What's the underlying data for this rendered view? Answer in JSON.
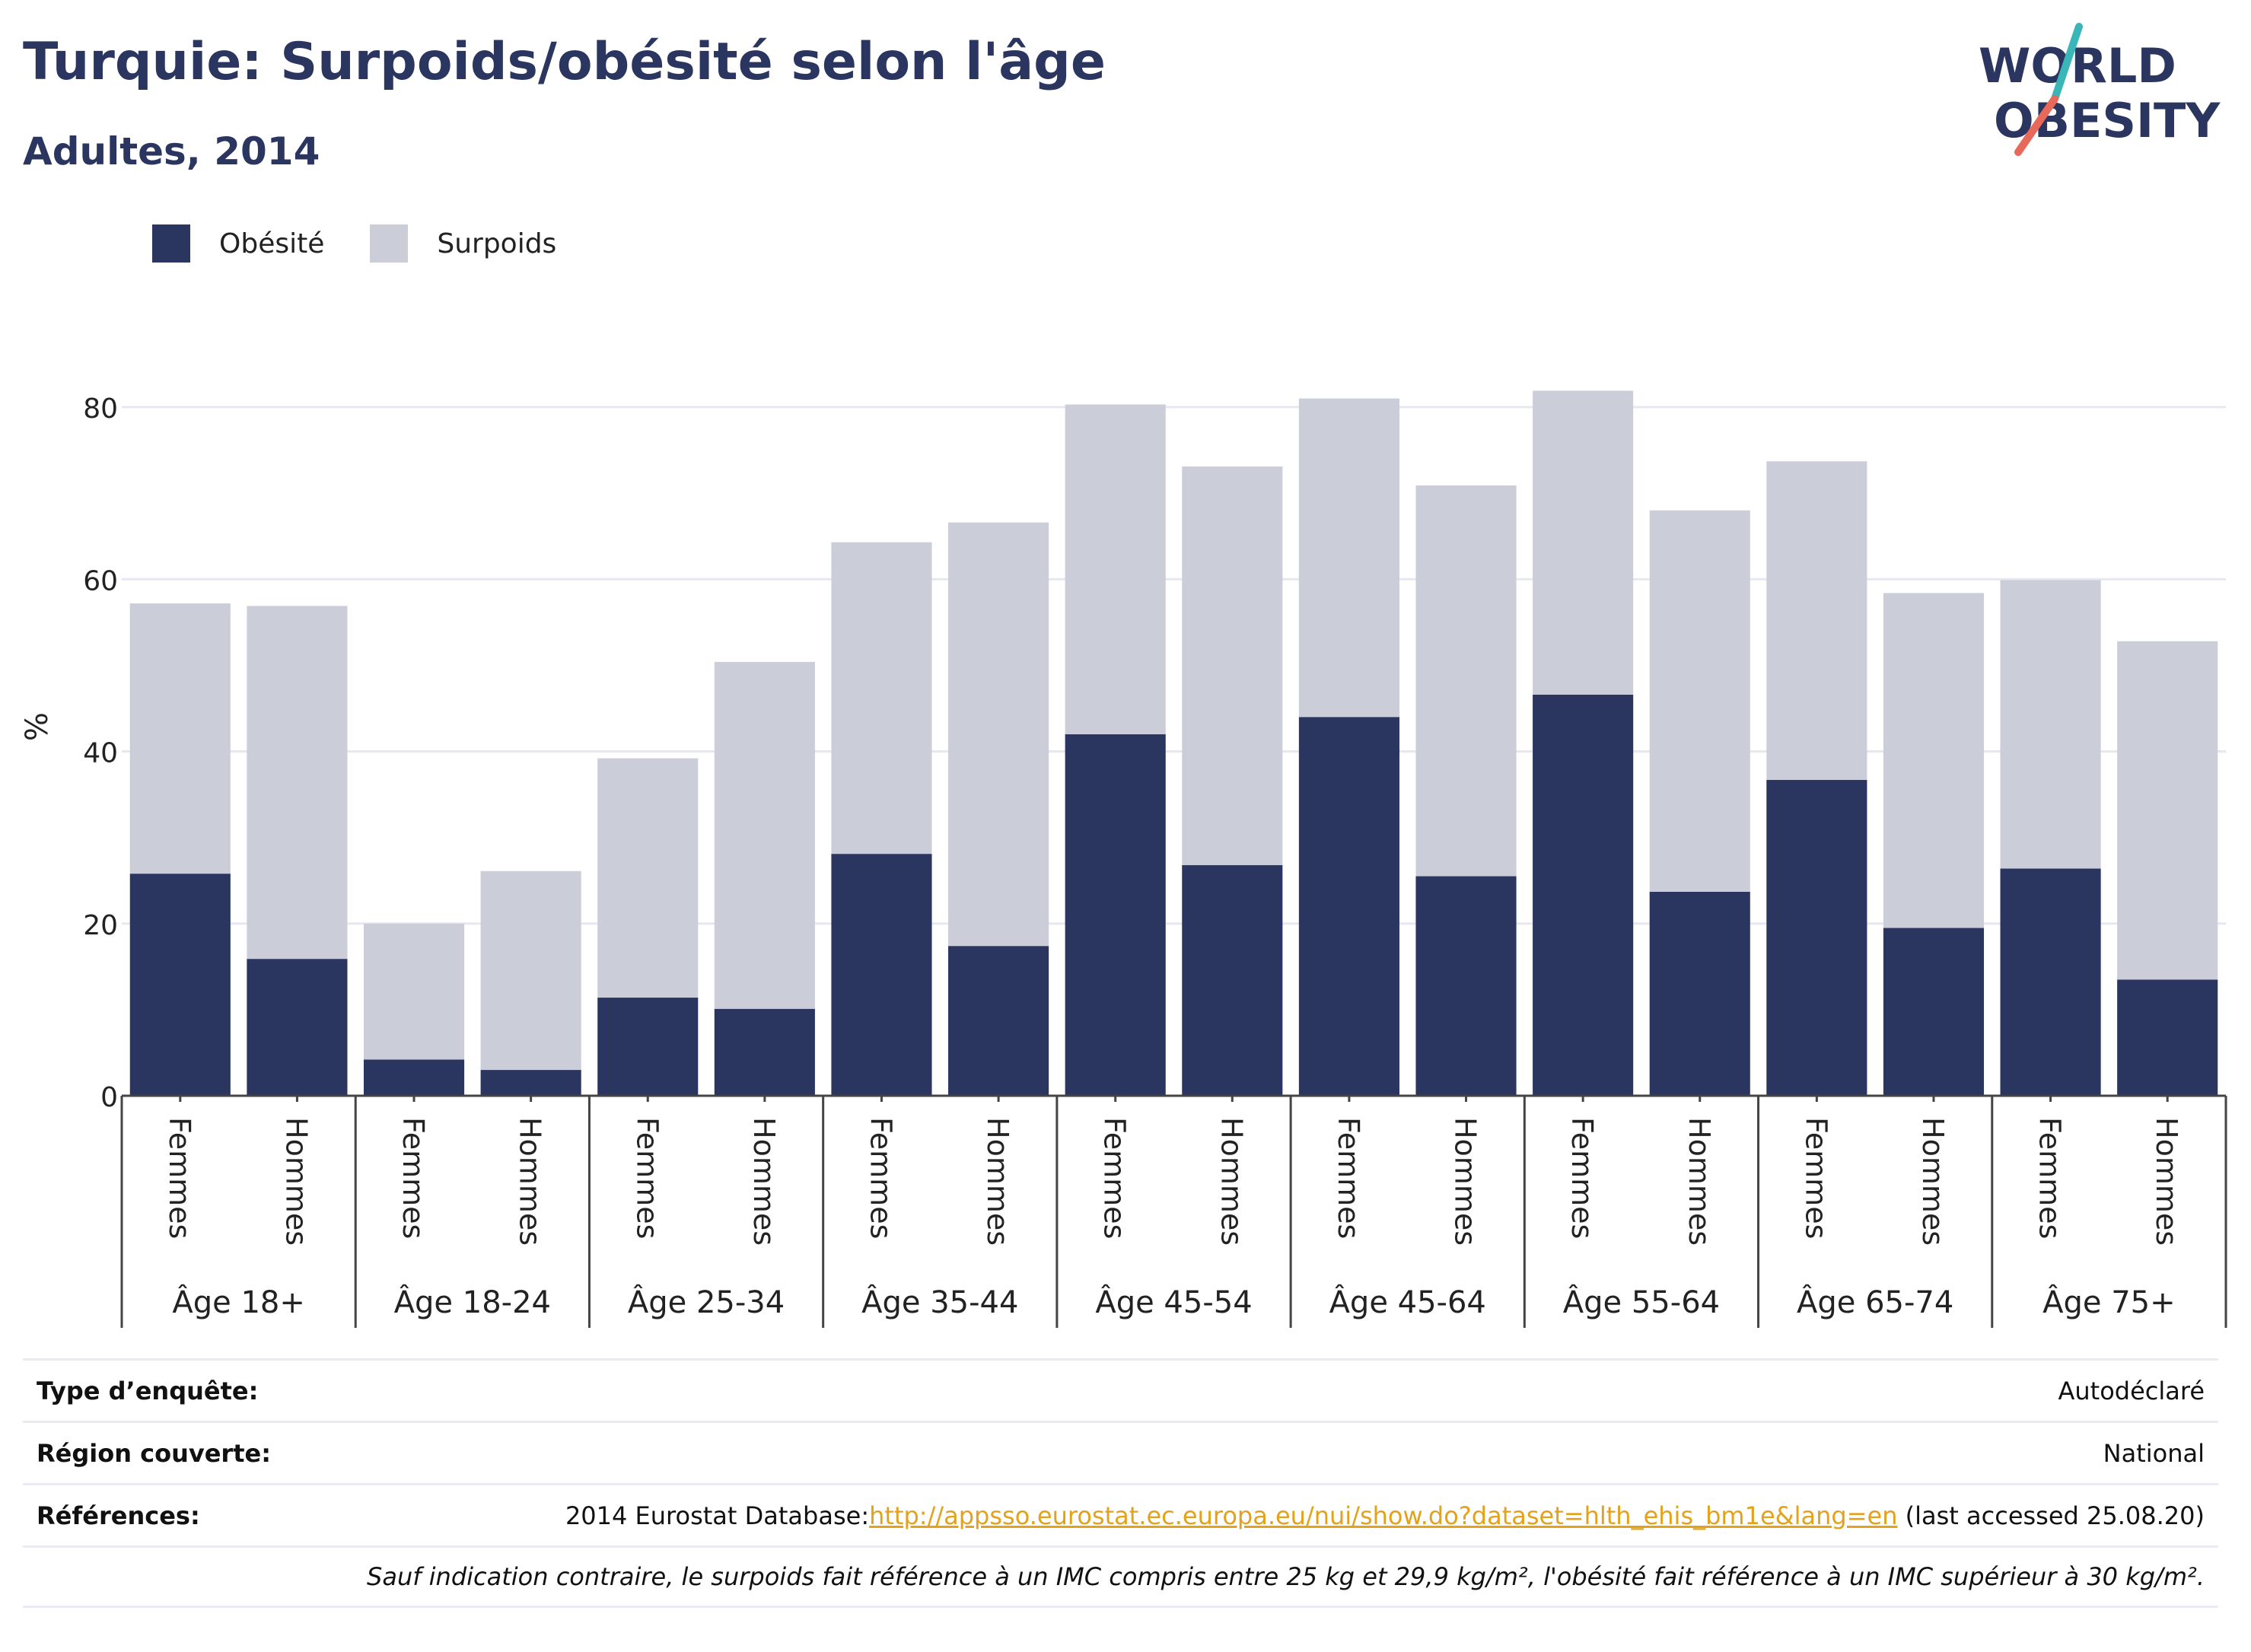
{
  "header": {
    "title": "Turquie: Surpoids/obésité selon l'âge",
    "subtitle": "Adultes, 2014"
  },
  "logo": {
    "line1": "WORLD",
    "line2": "OBESITY"
  },
  "colors": {
    "obesity": "#2a3560",
    "overweight": "#cbcdd9",
    "accent_teal": "#3bb6b8",
    "accent_red": "#e8685a",
    "link": "#e3a21a"
  },
  "chart_data": {
    "type": "bar",
    "stacked": true,
    "title": "",
    "ylabel": "%",
    "ylim": [
      0,
      90
    ],
    "yticks": [
      0,
      20,
      40,
      60,
      80
    ],
    "grid": true,
    "legend_position": "top-left",
    "sexes": [
      "Femmes",
      "Hommes"
    ],
    "groups": [
      "Âge 18+",
      "Âge 18-24",
      "Âge 25-34",
      "Âge 35-44",
      "Âge 45-54",
      "Âge 45-64",
      "Âge 55-64",
      "Âge 65-74",
      "Âge 75+"
    ],
    "series": [
      {
        "name": "Obésité",
        "values": [
          25.8,
          15.9,
          4.2,
          3.0,
          11.4,
          10.1,
          28.1,
          17.4,
          42.0,
          26.8,
          44.0,
          25.5,
          46.6,
          23.7,
          36.7,
          19.5,
          26.4,
          13.5
        ]
      },
      {
        "name": "Surpoids",
        "values": [
          31.4,
          41.0,
          15.8,
          23.1,
          27.8,
          40.3,
          36.2,
          49.2,
          38.3,
          46.3,
          37.0,
          45.4,
          35.3,
          44.3,
          37.0,
          38.9,
          33.5,
          39.3
        ]
      }
    ]
  },
  "info": {
    "survey_type_label": "Type d’enquête:",
    "survey_type_value": "Autodéclaré",
    "region_label": "Région couverte:",
    "region_value": "National",
    "references_label": "Références:",
    "references_prefix": "2014 Eurostat Database:",
    "references_link": "http://appsso.eurostat.ec.europa.eu/nui/show.do?dataset=hlth_ehis_bm1e&lang=en",
    "references_suffix": " (last accessed 25.08.20)",
    "note": "Sauf indication contraire, le surpoids fait référence à un IMC compris entre 25 kg et 29,9 kg/m², l'obésité fait référence à un IMC supérieur à 30 kg/m²."
  }
}
